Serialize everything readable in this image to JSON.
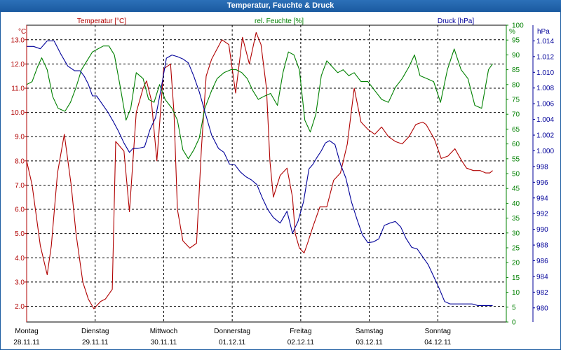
{
  "window": {
    "title": "Temperatur, Feuchte & Druck"
  },
  "colors": {
    "temperature": "#b00000",
    "humidity": "#008000",
    "pressure": "#000099",
    "grid": "#000000",
    "title_bar": "#1a5aa0"
  },
  "chart_data": {
    "type": "line",
    "title": "Temperatur, Feuchte & Druck",
    "x_range": [
      0,
      7
    ],
    "x_ticks": [
      {
        "day": "Montag",
        "date": "28.11.11",
        "x": 0
      },
      {
        "day": "Dienstag",
        "date": "29.11.11",
        "x": 1
      },
      {
        "day": "Mittwoch",
        "date": "30.11.11",
        "x": 2
      },
      {
        "day": "Donnerstag",
        "date": "01.12.11",
        "x": 3
      },
      {
        "day": "Freitag",
        "date": "02.12.11",
        "x": 4
      },
      {
        "day": "Samstag",
        "date": "03.12.11",
        "x": 5
      },
      {
        "day": "Sonntag",
        "date": "04.12.11",
        "x": 6
      }
    ],
    "axes": {
      "temperature": {
        "label": "Temperatur [°C]",
        "unit": "°C",
        "range": [
          1.35,
          13.6
        ],
        "ticks": [
          "2.0",
          "3.0",
          "4.0",
          "5.0",
          "6.0",
          "7.0",
          "8.0",
          "9.0",
          "10.0",
          "11.0",
          "12.0",
          "13.0"
        ]
      },
      "humidity": {
        "label": "rel. Feuchte [%]",
        "unit": "%",
        "range": [
          0,
          100
        ],
        "ticks": [
          "0",
          "5",
          "10",
          "15",
          "20",
          "25",
          "30",
          "35",
          "40",
          "45",
          "50",
          "55",
          "60",
          "65",
          "70",
          "75",
          "80",
          "85",
          "90",
          "95",
          "100"
        ]
      },
      "pressure": {
        "label": "Druck [hPa]",
        "unit": "hPa",
        "range": [
          978.2,
          1016.0
        ],
        "ticks": [
          "980",
          "982",
          "984",
          "986",
          "988",
          "990",
          "992",
          "994",
          "996",
          "998",
          "1.000",
          "1.002",
          "1.004",
          "1.006",
          "1.008",
          "1.010",
          "1.012",
          "1.014"
        ]
      }
    },
    "series": [
      {
        "name": "Temperatur [°C]",
        "axis": "temperature",
        "x": [
          0,
          0.08,
          0.2,
          0.3,
          0.36,
          0.45,
          0.55,
          0.65,
          0.72,
          0.82,
          0.9,
          0.98,
          1.08,
          1.15,
          1.25,
          1.3,
          1.42,
          1.5,
          1.6,
          1.7,
          1.75,
          1.82,
          1.9,
          2.0,
          2.1,
          2.15,
          2.2,
          2.28,
          2.38,
          2.48,
          2.55,
          2.62,
          2.7,
          2.85,
          2.95,
          3.05,
          3.15,
          3.25,
          3.35,
          3.42,
          3.5,
          3.55,
          3.6,
          3.7,
          3.8,
          3.88,
          3.92,
          3.98,
          4.05,
          4.1,
          4.18,
          4.28,
          4.38,
          4.48,
          4.58,
          4.68,
          4.78,
          4.88,
          4.98,
          5.08,
          5.18,
          5.28,
          5.38,
          5.48,
          5.58,
          5.68,
          5.78,
          5.83,
          5.95,
          6.05,
          6.15,
          6.25,
          6.35,
          6.42,
          6.52,
          6.62,
          6.7,
          6.76,
          6.8
        ],
        "values": [
          8.0,
          7.0,
          4.5,
          3.3,
          4.5,
          7.5,
          9.1,
          7.0,
          5.0,
          3.0,
          2.3,
          1.9,
          2.2,
          2.3,
          2.7,
          8.8,
          8.4,
          5.9,
          10.0,
          11.0,
          11.3,
          10.5,
          8.0,
          11.8,
          12.0,
          10.0,
          6.0,
          4.7,
          4.4,
          4.6,
          8.5,
          11.5,
          12.2,
          13.0,
          12.8,
          10.8,
          13.1,
          12.0,
          13.3,
          12.8,
          11.0,
          8.0,
          6.5,
          7.4,
          7.7,
          6.5,
          5.0,
          4.4,
          4.2,
          4.6,
          5.3,
          6.1,
          6.1,
          7.2,
          7.5,
          8.7,
          11.0,
          9.6,
          9.3,
          9.1,
          9.4,
          9.0,
          8.8,
          8.7,
          9.0,
          9.5,
          9.6,
          9.5,
          8.9,
          8.1,
          8.2,
          8.5,
          8.0,
          7.7,
          7.6,
          7.6,
          7.5,
          7.5,
          7.6
        ]
      },
      {
        "name": "rel. Feuchte [%]",
        "axis": "humidity",
        "x": [
          0,
          0.08,
          0.16,
          0.22,
          0.3,
          0.38,
          0.46,
          0.56,
          0.64,
          0.72,
          0.8,
          0.88,
          0.96,
          1.04,
          1.12,
          1.2,
          1.28,
          1.36,
          1.45,
          1.52,
          1.6,
          1.7,
          1.78,
          1.86,
          1.94,
          2.02,
          2.12,
          2.2,
          2.28,
          2.36,
          2.44,
          2.52,
          2.6,
          2.7,
          2.78,
          2.88,
          2.98,
          3.06,
          3.14,
          3.22,
          3.3,
          3.38,
          3.46,
          3.56,
          3.66,
          3.74,
          3.82,
          3.9,
          3.98,
          4.06,
          4.14,
          4.22,
          4.3,
          4.38,
          4.46,
          4.54,
          4.62,
          4.7,
          4.78,
          4.88,
          4.98,
          5.08,
          5.18,
          5.28,
          5.38,
          5.48,
          5.58,
          5.66,
          5.74,
          5.84,
          5.94,
          6.04,
          6.14,
          6.24,
          6.34,
          6.44,
          6.54,
          6.64,
          6.74,
          6.8
        ],
        "values": [
          80,
          81,
          86,
          89,
          85,
          76,
          72,
          71,
          74,
          79,
          85,
          88,
          91,
          92,
          93,
          93,
          90,
          80,
          68,
          72,
          84,
          82,
          75,
          74,
          80,
          75,
          72,
          68,
          58,
          55,
          58,
          62,
          72,
          78,
          82,
          84,
          85,
          85,
          84,
          82,
          78,
          75,
          76,
          77,
          73,
          84,
          91,
          90,
          85,
          68,
          64,
          70,
          83,
          88,
          86,
          84,
          85,
          83,
          84,
          81,
          81,
          78,
          75,
          74,
          79,
          82,
          86,
          90,
          83,
          82,
          81,
          74,
          85,
          92,
          85,
          82,
          73,
          72,
          85,
          87
        ]
      },
      {
        "name": "Druck [hPa]",
        "axis": "pressure",
        "x": [
          0,
          0.1,
          0.2,
          0.3,
          0.4,
          0.5,
          0.6,
          0.7,
          0.78,
          0.84,
          0.9,
          0.96,
          1.02,
          1.1,
          1.18,
          1.26,
          1.34,
          1.42,
          1.5,
          1.55,
          1.62,
          1.72,
          1.8,
          1.88,
          1.96,
          2.04,
          2.12,
          2.2,
          2.28,
          2.36,
          2.44,
          2.52,
          2.6,
          2.7,
          2.8,
          2.88,
          2.96,
          3.04,
          3.12,
          3.2,
          3.28,
          3.36,
          3.44,
          3.52,
          3.6,
          3.7,
          3.8,
          3.88,
          3.96,
          4.04,
          4.12,
          4.18,
          4.24,
          4.3,
          4.36,
          4.42,
          4.5,
          4.58,
          4.66,
          4.74,
          4.82,
          4.9,
          4.98,
          5.06,
          5.14,
          5.22,
          5.3,
          5.38,
          5.46,
          5.54,
          5.62,
          5.7,
          5.78,
          5.86,
          5.94,
          6.02,
          6.1,
          6.18,
          6.26,
          6.34,
          6.42,
          6.5,
          6.58,
          6.66,
          6.72,
          6.8
        ],
        "values": [
          1013.3,
          1013.3,
          1013.0,
          1014.0,
          1014.0,
          1012.3,
          1010.8,
          1010.2,
          1010.2,
          1009.5,
          1008.5,
          1007.0,
          1007.0,
          1006.0,
          1005.0,
          1003.8,
          1002.5,
          1001.0,
          999.8,
          1000.3,
          1000.3,
          1000.5,
          1002.7,
          1004.2,
          1007.8,
          1011.8,
          1012.2,
          1012.0,
          1011.7,
          1011.2,
          1009.5,
          1007.5,
          1005.0,
          1002.0,
          1000.3,
          999.8,
          998.3,
          998.2,
          997.3,
          996.7,
          996.3,
          995.7,
          994.0,
          992.5,
          991.5,
          990.8,
          992.3,
          989.5,
          991.0,
          993.5,
          997.7,
          998.3,
          999.2,
          1000.0,
          1001.0,
          1001.3,
          1000.8,
          998.3,
          996.5,
          993.5,
          991.3,
          989.3,
          988.3,
          988.4,
          988.8,
          990.5,
          990.8,
          991.0,
          990.3,
          988.8,
          987.7,
          987.5,
          986.5,
          985.5,
          984.0,
          982.5,
          980.8,
          980.5,
          980.5,
          980.5,
          980.5,
          980.5,
          980.3,
          980.3,
          980.3,
          980.3
        ]
      }
    ]
  }
}
